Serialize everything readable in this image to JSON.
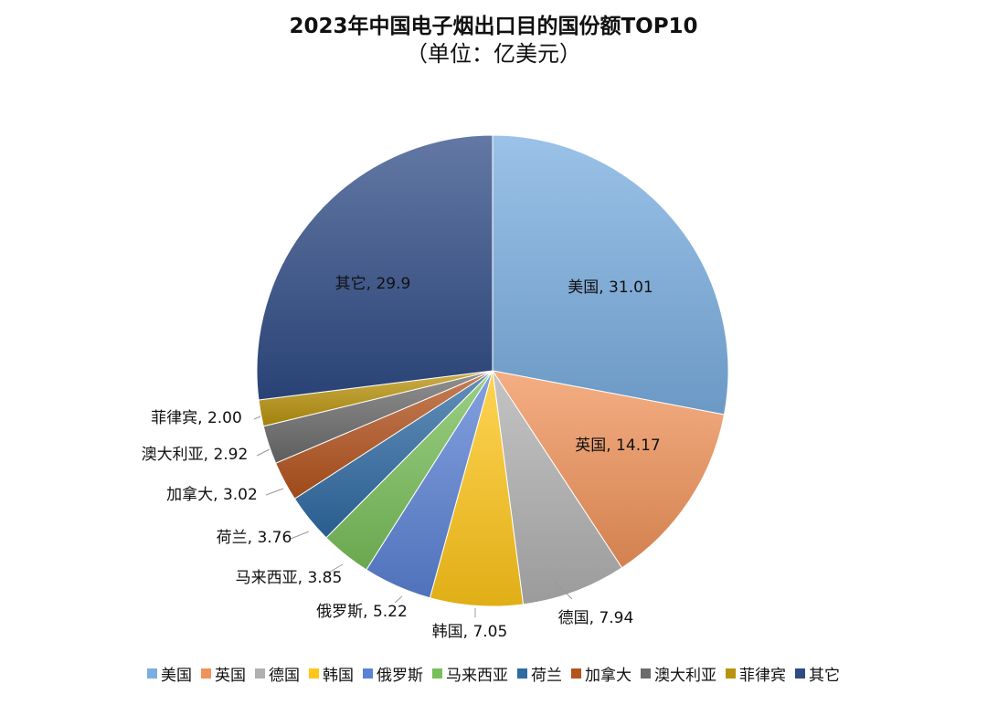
{
  "title": "2023年中国电子烟出口目的国份额TOP10",
  "subtitle": "（单位：亿美元）",
  "chart_data": {
    "type": "pie",
    "title": "2023年中国电子烟出口目的国份额TOP10",
    "subtitle": "（单位：亿美元）",
    "categories": [
      "美国",
      "英国",
      "德国",
      "韩国",
      "俄罗斯",
      "马来西亚",
      "荷兰",
      "加拿大",
      "澳大利亚",
      "菲律宾",
      "其它"
    ],
    "values": [
      31.01,
      14.17,
      7.94,
      7.05,
      5.22,
      3.85,
      3.76,
      3.02,
      2.92,
      2.0,
      29.9
    ],
    "value_labels": [
      "31.01",
      "14.17",
      "7.94",
      "7.05",
      "5.22",
      "3.85",
      "3.76",
      "3.02",
      "2.92",
      "2.00",
      "29.9"
    ],
    "colors": [
      "#7aaee0",
      "#f0935a",
      "#b0b0b0",
      "#ffc619",
      "#5b82d4",
      "#78bf5a",
      "#2f6aa3",
      "#b3531e",
      "#6b6b6b",
      "#b8930c",
      "#2f4b85"
    ],
    "legend_position": "bottom"
  }
}
